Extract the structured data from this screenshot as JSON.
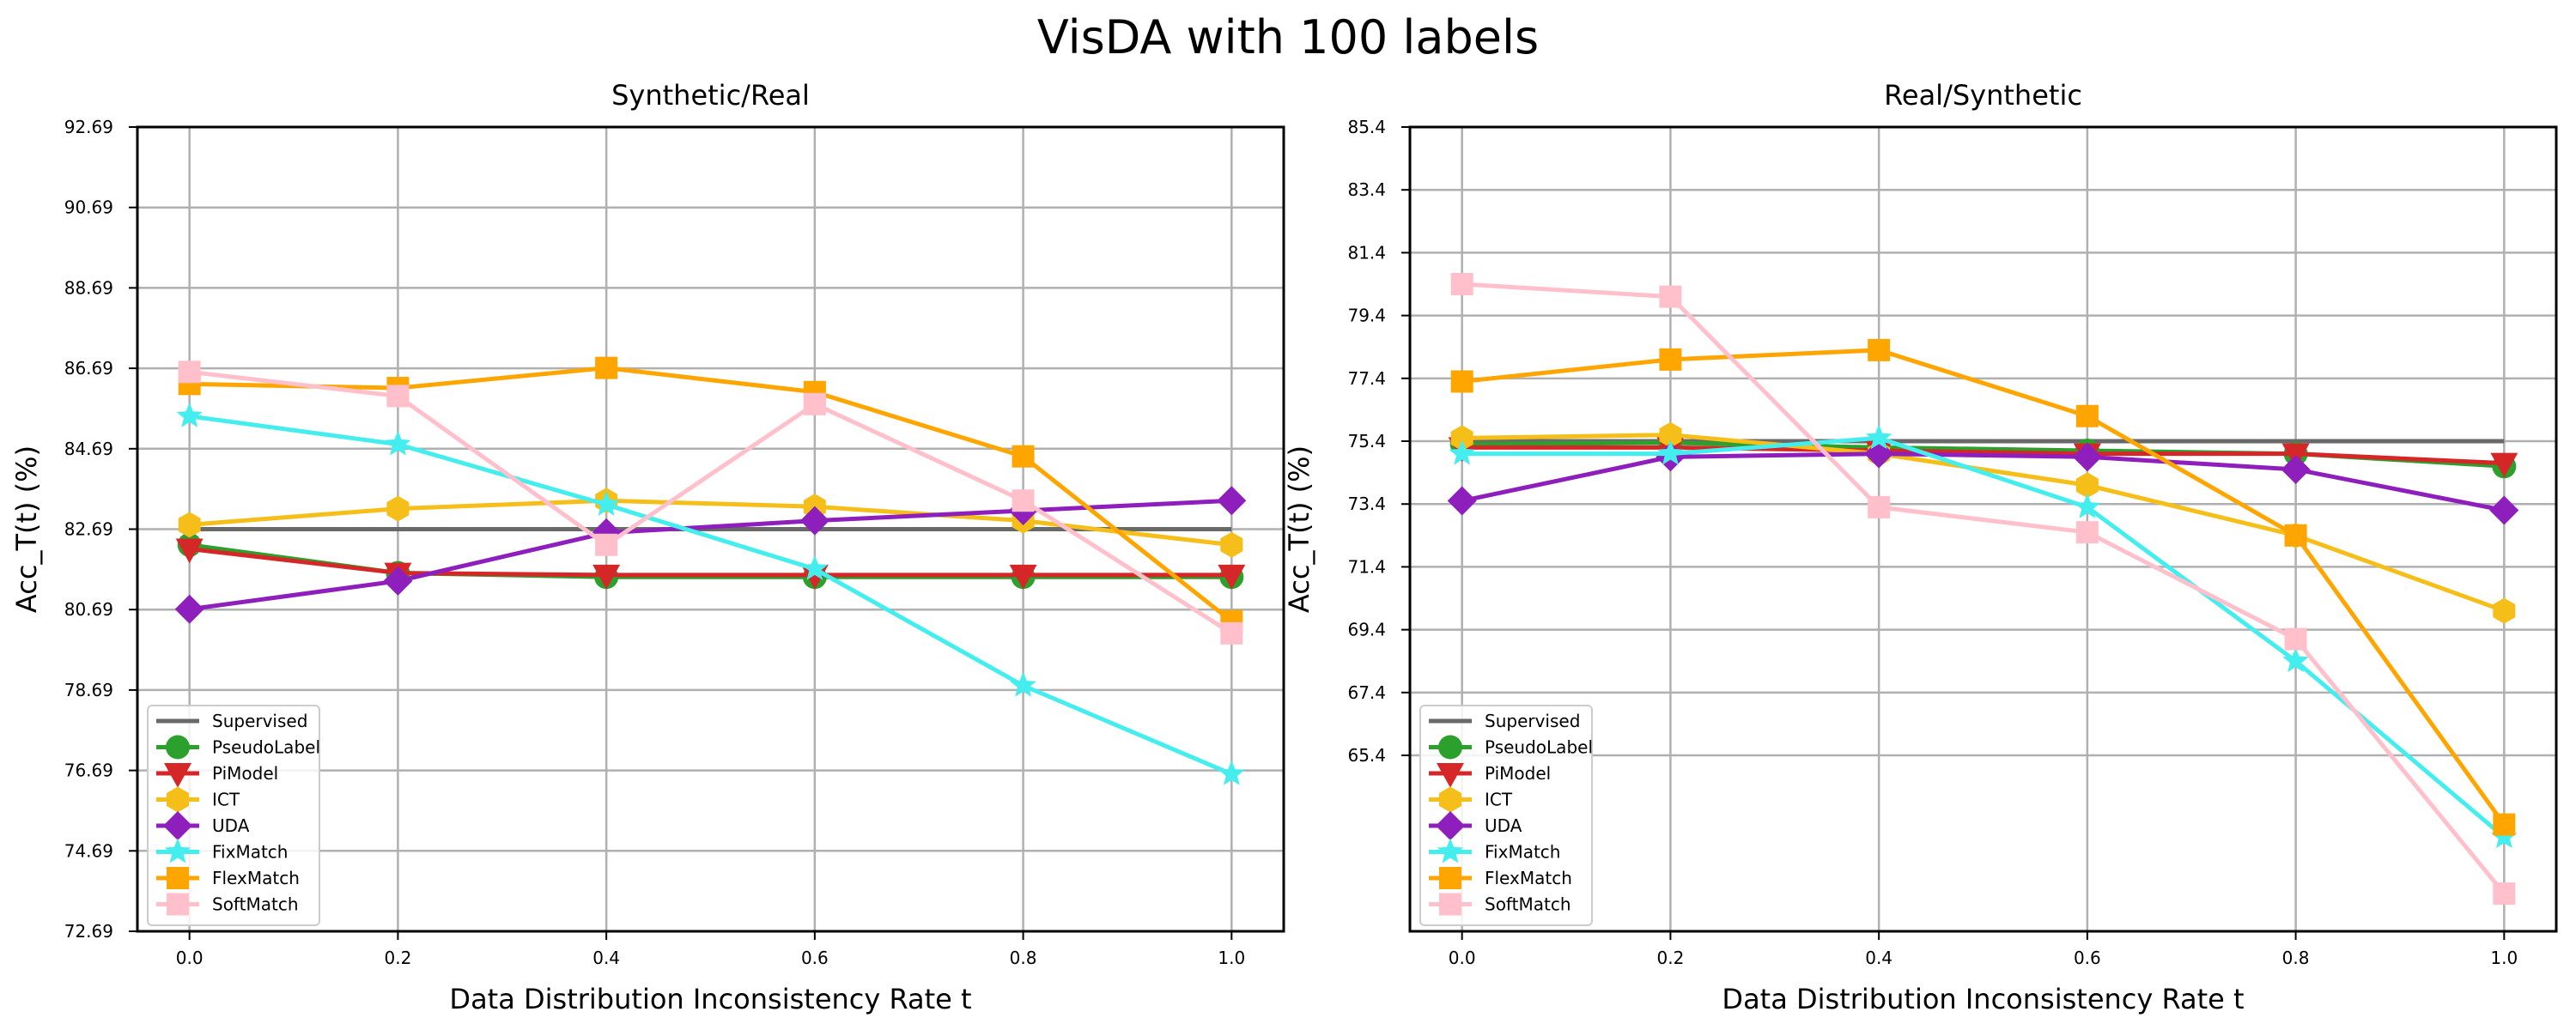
{
  "figure_title": "VisDA with 100 labels",
  "chart_data": [
    {
      "type": "line",
      "title": "Synthetic/Real",
      "xlabel": "Data Distribution Inconsistency Rate t",
      "ylabel": "Acc_T(t) (%)",
      "xlim": [
        -0.05,
        1.05
      ],
      "ylim": [
        72.69,
        92.69
      ],
      "x_ticks": [
        0.0,
        0.2,
        0.4,
        0.6,
        0.8,
        1.0
      ],
      "x_tick_labels": [
        "0.0",
        "0.2",
        "0.4",
        "0.6",
        "0.8",
        "1.0"
      ],
      "y_ticks": [
        72.69,
        74.69,
        76.69,
        78.69,
        80.69,
        82.69,
        84.69,
        86.69,
        88.69,
        90.69,
        92.69
      ],
      "y_tick_labels": [
        "72.69",
        "74.69",
        "76.69",
        "78.69",
        "80.69",
        "82.69",
        "84.69",
        "86.69",
        "88.69",
        "90.69",
        "92.69"
      ],
      "grid": true,
      "legend_position": "lower-left",
      "x": [
        0.0,
        0.2,
        0.4,
        0.6,
        0.8,
        1.0
      ],
      "series": [
        {
          "name": "Supervised",
          "color": "#696969",
          "marker": "none",
          "values": [
            82.69,
            82.69,
            82.69,
            82.69,
            82.69,
            82.69
          ]
        },
        {
          "name": "PseudoLabel",
          "color": "#2ca02c",
          "marker": "circle",
          "values": [
            82.3,
            81.6,
            81.5,
            81.5,
            81.5,
            81.5
          ]
        },
        {
          "name": "PiModel",
          "color": "#d62728",
          "marker": "triangle-down",
          "values": [
            82.2,
            81.6,
            81.55,
            81.55,
            81.55,
            81.55
          ]
        },
        {
          "name": "ICT",
          "color": "#f5be19",
          "marker": "hexagon",
          "values": [
            82.8,
            83.2,
            83.4,
            83.25,
            82.9,
            82.3
          ]
        },
        {
          "name": "UDA",
          "color": "#8e1fbc",
          "marker": "diamond",
          "values": [
            80.7,
            81.4,
            82.6,
            82.9,
            83.15,
            83.4
          ]
        },
        {
          "name": "FixMatch",
          "color": "#45eeee",
          "marker": "star",
          "values": [
            85.5,
            84.8,
            83.3,
            81.7,
            78.8,
            76.6
          ]
        },
        {
          "name": "FlexMatch",
          "color": "#ffa500",
          "marker": "square",
          "values": [
            86.3,
            86.2,
            86.7,
            86.1,
            84.5,
            80.4
          ]
        },
        {
          "name": "SoftMatch",
          "color": "#ffc0cb",
          "marker": "square",
          "values": [
            86.6,
            86.0,
            82.3,
            85.8,
            83.4,
            80.1
          ]
        }
      ]
    },
    {
      "type": "line",
      "title": "Real/Synthetic",
      "xlabel": "Data Distribution Inconsistency Rate t",
      "ylabel": "Acc_T(t) (%)",
      "xlim": [
        -0.05,
        1.05
      ],
      "ylim": [
        59.8,
        85.4
      ],
      "x_ticks": [
        0.0,
        0.2,
        0.4,
        0.6,
        0.8,
        1.0
      ],
      "x_tick_labels": [
        "0.0",
        "0.2",
        "0.4",
        "0.6",
        "0.8",
        "1.0"
      ],
      "y_ticks": [
        65.4,
        67.4,
        69.4,
        71.4,
        73.4,
        75.4,
        77.4,
        79.4,
        81.4,
        83.4,
        85.4
      ],
      "y_tick_labels": [
        "65.4",
        "67.4",
        "69.4",
        "71.4",
        "73.4",
        "75.4",
        "77.4",
        "79.4",
        "81.4",
        "83.4",
        "85.4"
      ],
      "grid": true,
      "legend_position": "lower-left",
      "x": [
        0.0,
        0.2,
        0.4,
        0.6,
        0.8,
        1.0
      ],
      "series": [
        {
          "name": "Supervised",
          "color": "#696969",
          "marker": "none",
          "values": [
            75.4,
            75.4,
            75.4,
            75.4,
            75.4,
            75.4
          ]
        },
        {
          "name": "PseudoLabel",
          "color": "#2ca02c",
          "marker": "circle",
          "values": [
            75.3,
            75.35,
            75.2,
            75.1,
            75.0,
            74.6
          ]
        },
        {
          "name": "PiModel",
          "color": "#d62728",
          "marker": "triangle-down",
          "values": [
            75.2,
            75.2,
            75.1,
            75.0,
            75.0,
            74.7
          ]
        },
        {
          "name": "ICT",
          "color": "#f5be19",
          "marker": "hexagon",
          "values": [
            75.5,
            75.6,
            75.0,
            74.0,
            72.4,
            70.0
          ]
        },
        {
          "name": "UDA",
          "color": "#8e1fbc",
          "marker": "diamond",
          "values": [
            73.5,
            74.9,
            75.0,
            74.9,
            74.5,
            73.2
          ]
        },
        {
          "name": "FixMatch",
          "color": "#45eeee",
          "marker": "star",
          "values": [
            75.0,
            75.0,
            75.5,
            73.3,
            68.4,
            62.8
          ]
        },
        {
          "name": "FlexMatch",
          "color": "#ffa500",
          "marker": "square",
          "values": [
            77.3,
            78.0,
            78.3,
            76.2,
            72.4,
            63.2
          ]
        },
        {
          "name": "SoftMatch",
          "color": "#ffc0cb",
          "marker": "square",
          "values": [
            80.4,
            80.0,
            73.3,
            72.5,
            69.1,
            61.0
          ]
        }
      ]
    }
  ]
}
